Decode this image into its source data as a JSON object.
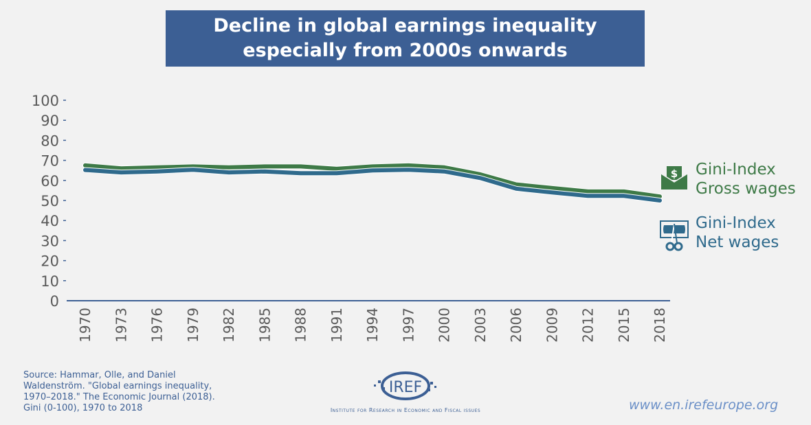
{
  "title": {
    "line1": "Decline in global earnings inequality",
    "line2": "especially from 2000s onwards"
  },
  "chart_data": {
    "type": "line",
    "title": "Decline in global earnings inequality especially from 2000s onwards",
    "xlabel": "",
    "ylabel": "",
    "ylim": [
      0,
      100
    ],
    "yticks": [
      "0",
      "10",
      "20",
      "30",
      "40",
      "50",
      "60",
      "70",
      "80",
      "90",
      "100"
    ],
    "x": [
      "1970",
      "1973",
      "1976",
      "1979",
      "1982",
      "1985",
      "1988",
      "1991",
      "1994",
      "1997",
      "2000",
      "2003",
      "2006",
      "2009",
      "2012",
      "2015",
      "2018"
    ],
    "series": [
      {
        "name": "Gini-Index Gross wages",
        "color": "#3e7a47",
        "values": [
          67.5,
          66,
          66.5,
          67,
          66.5,
          67,
          67,
          65.8,
          67,
          67.5,
          66.5,
          63,
          58,
          56.2,
          54.5,
          54.5,
          52
        ]
      },
      {
        "name": "Gini-Index Net wages",
        "color": "#2f6a8c",
        "values": [
          65.2,
          64,
          64.5,
          65.3,
          64,
          64.5,
          63.6,
          63.6,
          65,
          65.3,
          64.5,
          61.2,
          55.9,
          54,
          52.3,
          52.3,
          50
        ]
      }
    ],
    "grid": false,
    "legend_position": "right"
  },
  "legend": {
    "gross": {
      "line1": "Gini-Index",
      "line2": "Gross wages",
      "icon": "money-envelope-icon"
    },
    "net": {
      "line1": "Gini-Index",
      "line2": "Net wages",
      "icon": "banknote-scissors-icon"
    }
  },
  "source": {
    "line1": "Source: Hammar, Olle, and Daniel",
    "line2": "Waldenström. \"Global earnings inequality,",
    "line3": "1970–2018.\" The Economic Journal (2018).",
    "line4": "Gini (0-100), 1970 to 2018"
  },
  "logo": {
    "name": "IREF",
    "tagline": "Institute for Research in Economic and Fiscal issues"
  },
  "url": "www.en.irefeurope.org"
}
